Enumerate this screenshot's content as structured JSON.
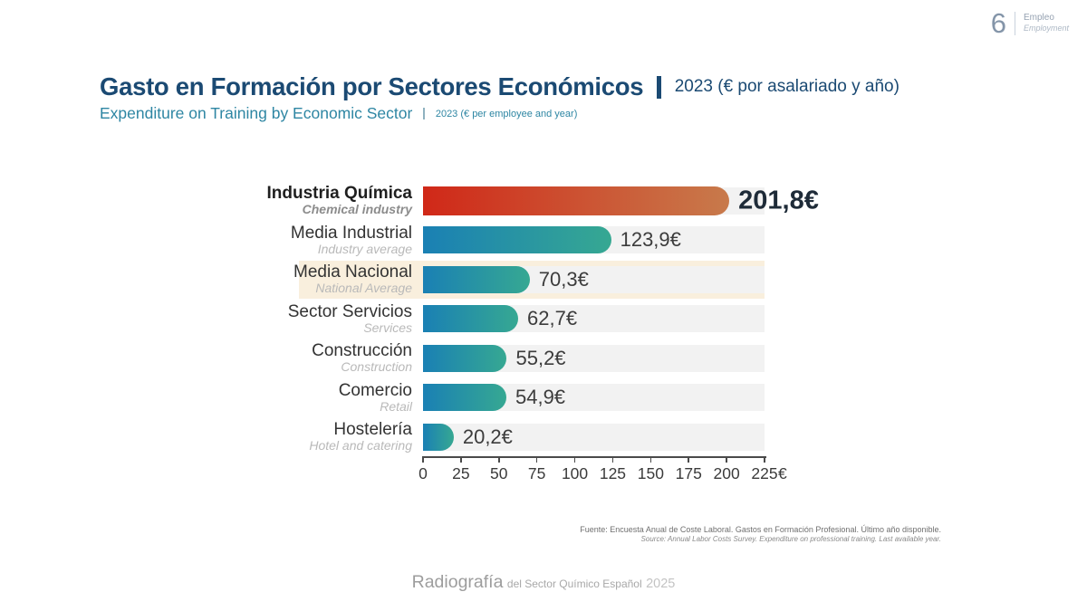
{
  "page": {
    "number": "6",
    "section_es": "Empleo",
    "section_en": "Employment"
  },
  "header": {
    "title_es": "Gasto en Formación por Sectores Económicos",
    "title_note_es": "2023 (€ por asalariado y año)",
    "title_en": "Expenditure on Training by Economic Sector",
    "title_note_en": "2023 (€ per employee and year)"
  },
  "chart_data": {
    "type": "bar",
    "orientation": "horizontal",
    "title": "Gasto en Formación por Sectores Económicos",
    "subtitle": "Expenditure on Training by Economic Sector",
    "unit_note": "2023 (€ por asalariado y año)",
    "xlim": [
      0,
      225
    ],
    "x_ticks": [
      0,
      25,
      50,
      75,
      100,
      125,
      150,
      175,
      200,
      225
    ],
    "x_unit": "€",
    "grid": false,
    "legend": false,
    "rows": [
      {
        "label": "Industria Química",
        "label_en": "Chemical industry",
        "value": 201.8,
        "value_label": "201,8€",
        "emphasis": true,
        "highlighted": false
      },
      {
        "label": "Media Industrial",
        "label_en": "Industry average",
        "value": 123.9,
        "value_label": "123,9€",
        "emphasis": false,
        "highlighted": false
      },
      {
        "label": "Media Nacional",
        "label_en": "National Average",
        "value": 70.3,
        "value_label": "70,3€",
        "emphasis": false,
        "highlighted": true
      },
      {
        "label": "Sector Servicios",
        "label_en": "Services",
        "value": 62.7,
        "value_label": "62,7€",
        "emphasis": false,
        "highlighted": false
      },
      {
        "label": "Construcción",
        "label_en": "Construction",
        "value": 55.2,
        "value_label": "55,2€",
        "emphasis": false,
        "highlighted": false
      },
      {
        "label": "Comercio",
        "label_en": "Retail",
        "value": 54.9,
        "value_label": "54,9€",
        "emphasis": false,
        "highlighted": false
      },
      {
        "label": "Hostelería",
        "label_en": "Hotel and catering",
        "value": 20.2,
        "value_label": "20,2€",
        "emphasis": false,
        "highlighted": false
      }
    ],
    "colors": {
      "bar_gradient_start": "#1a80b4",
      "bar_gradient_end": "#36a892",
      "emphasis_gradient_start": "#d02818",
      "emphasis_gradient_end": "#c87a4b",
      "track": "#f2f2f2",
      "highlight_band": "#f9efdd",
      "title": "#1b4a73",
      "subtitle": "#2e86a3"
    }
  },
  "footer": {
    "source_es": "Fuente: Encuesta Anual de Coste Laboral. Gastos en Formación Profesional. Último año disponible.",
    "source_en": "Source: Annual Labor Costs Survey. Expenditure on professional training. Last available year.",
    "brand_name": "Radiografía",
    "brand_tagline": "del Sector Químico Español",
    "brand_year": "2025"
  }
}
